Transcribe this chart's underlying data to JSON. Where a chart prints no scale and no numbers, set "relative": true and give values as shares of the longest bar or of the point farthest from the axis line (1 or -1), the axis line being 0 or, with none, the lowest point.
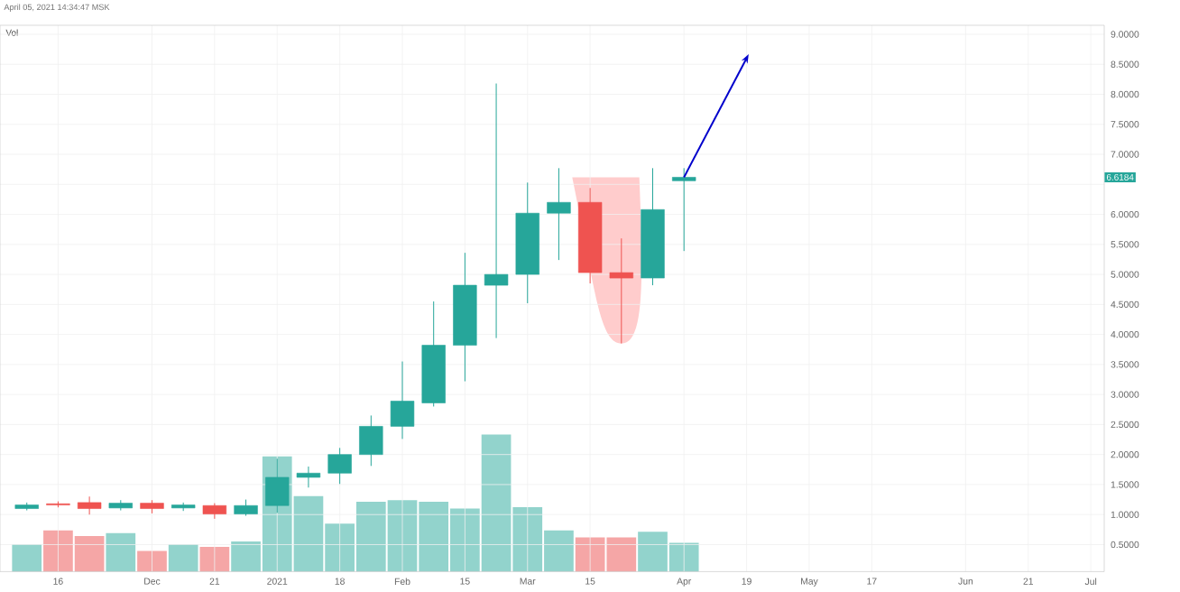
{
  "chart_data": [
    {
      "type": "candlestick",
      "x": [
        "2020-11-09",
        "2020-11-16",
        "2020-11-23",
        "2020-11-30",
        "2020-12-07",
        "2020-12-14",
        "2020-12-21",
        "2020-12-28",
        "2021-01-04",
        "2021-01-11",
        "2021-01-18",
        "2021-01-25",
        "2021-02-01",
        "2021-02-08",
        "2021-02-15",
        "2021-02-22",
        "2021-03-01",
        "2021-03-08",
        "2021-03-15",
        "2021-03-22",
        "2021-03-29",
        "2021-04-05"
      ],
      "ohlc": [
        [
          1.1,
          1.2,
          1.07,
          1.16
        ],
        [
          1.18,
          1.22,
          1.12,
          1.16
        ],
        [
          1.2,
          1.3,
          1.0,
          1.1
        ],
        [
          1.11,
          1.24,
          1.07,
          1.19
        ],
        [
          1.19,
          1.24,
          1.02,
          1.1
        ],
        [
          1.11,
          1.2,
          1.06,
          1.16
        ],
        [
          1.15,
          1.19,
          0.93,
          1.01
        ],
        [
          1.01,
          1.25,
          0.98,
          1.15
        ],
        [
          1.15,
          1.93,
          1.03,
          1.62
        ],
        [
          1.62,
          1.8,
          1.45,
          1.69
        ],
        [
          1.69,
          2.11,
          1.51,
          2.0
        ],
        [
          2.0,
          2.65,
          1.81,
          2.47
        ],
        [
          2.47,
          3.55,
          2.26,
          2.89
        ],
        [
          2.86,
          4.55,
          2.8,
          3.82
        ],
        [
          3.82,
          5.36,
          3.22,
          4.82
        ],
        [
          4.82,
          8.18,
          3.94,
          5.0
        ],
        [
          5.0,
          6.53,
          4.52,
          6.02
        ],
        [
          6.02,
          6.77,
          5.24,
          6.2
        ],
        [
          6.2,
          6.44,
          4.85,
          5.03
        ],
        [
          5.03,
          5.6,
          3.85,
          4.94
        ],
        [
          4.94,
          6.77,
          4.82,
          6.08
        ],
        [
          6.56,
          6.77,
          5.39,
          6.6184
        ]
      ],
      "colors": [
        "#26a69a",
        "#ef5350",
        "#ef5350",
        "#26a69a",
        "#ef5350",
        "#26a69a",
        "#ef5350",
        "#26a69a",
        "#26a69a",
        "#26a69a",
        "#26a69a",
        "#26a69a",
        "#26a69a",
        "#26a69a",
        "#26a69a",
        "#26a69a",
        "#26a69a",
        "#26a69a",
        "#ef5350",
        "#ef5350",
        "#26a69a",
        "#26a69a"
      ],
      "xlim": [
        "2020-11-03",
        "2021-07-08"
      ],
      "ylim": [
        0.05,
        9.15
      ],
      "xticks": [
        {
          "value": "2020-11-16",
          "label": "16"
        },
        {
          "value": "2020-12-07",
          "label": "Dec"
        },
        {
          "value": "2020-12-21",
          "label": "21"
        },
        {
          "value": "2021-01-04",
          "label": "2021"
        },
        {
          "value": "2021-01-18",
          "label": "18"
        },
        {
          "value": "2021-02-01",
          "label": "Feb"
        },
        {
          "value": "2021-02-15",
          "label": "15"
        },
        {
          "value": "2021-03-01",
          "label": "Mar"
        },
        {
          "value": "2021-03-15",
          "label": "15"
        },
        {
          "value": "2021-04-05",
          "label": "Apr"
        },
        {
          "value": "2021-04-19",
          "label": "19"
        },
        {
          "value": "2021-05-03",
          "label": "May"
        },
        {
          "value": "2021-05-17",
          "label": "17"
        },
        {
          "value": "2021-06-07",
          "label": "Jun"
        },
        {
          "value": "2021-06-21",
          "label": "21"
        },
        {
          "value": "2021-07-05",
          "label": "Jul"
        }
      ],
      "yticks": [
        {
          "value": 0.5,
          "label": "0.5000"
        },
        {
          "value": 1.0,
          "label": "1.0000"
        },
        {
          "value": 1.5,
          "label": "1.5000"
        },
        {
          "value": 2.0,
          "label": "2.0000"
        },
        {
          "value": 2.5,
          "label": "2.5000"
        },
        {
          "value": 3.0,
          "label": "3.0000"
        },
        {
          "value": 3.5,
          "label": "3.5000"
        },
        {
          "value": 4.0,
          "label": "4.0000"
        },
        {
          "value": 4.5,
          "label": "4.5000"
        },
        {
          "value": 5.0,
          "label": "5.0000"
        },
        {
          "value": 5.5,
          "label": "5.5000"
        },
        {
          "value": 6.0,
          "label": "6.0000"
        },
        {
          "value": 6.5,
          "label": null
        },
        {
          "value": 7.0,
          "label": "7.0000"
        },
        {
          "value": 7.5,
          "label": "7.5000"
        },
        {
          "value": 8.0,
          "label": "8.0000"
        },
        {
          "value": 8.5,
          "label": "8.5000"
        },
        {
          "value": 9.0,
          "label": "9.0000"
        }
      ],
      "grid": true,
      "annotations": [
        "April 05, 2021 14:34:47 MSK",
        "6.6184"
      ]
    },
    {
      "type": "bar",
      "title": "Vol",
      "x": [
        "2020-11-09",
        "2020-11-16",
        "2020-11-23",
        "2020-11-30",
        "2020-12-07",
        "2020-12-14",
        "2020-12-21",
        "2020-12-28",
        "2021-01-04",
        "2021-01-11",
        "2021-01-18",
        "2021-01-25",
        "2021-02-01",
        "2021-02-08",
        "2021-02-15",
        "2021-02-22",
        "2021-03-01",
        "2021-03-08",
        "2021-03-15",
        "2021-03-22",
        "2021-03-29",
        "2021-04-05"
      ],
      "values": [
        0.2,
        0.3,
        0.26,
        0.28,
        0.15,
        0.2,
        0.18,
        0.22,
        0.84,
        0.55,
        0.35,
        0.51,
        0.52,
        0.51,
        0.46,
        1,
        0.47,
        0.3,
        0.25,
        0.25,
        0.29,
        0.21
      ],
      "colors": [
        "#92d3cc",
        "#f5a6a6",
        "#f5a6a6",
        "#92d3cc",
        "#f5a6a6",
        "#92d3cc",
        "#f5a6a6",
        "#92d3cc",
        "#92d3cc",
        "#92d3cc",
        "#92d3cc",
        "#92d3cc",
        "#92d3cc",
        "#92d3cc",
        "#92d3cc",
        "#92d3cc",
        "#92d3cc",
        "#92d3cc",
        "#f5a6a6",
        "#f5a6a6",
        "#92d3cc",
        "#92d3cc"
      ],
      "relative": true,
      "xlim": [
        "2020-11-03",
        "2021-07-08"
      ]
    }
  ]
}
